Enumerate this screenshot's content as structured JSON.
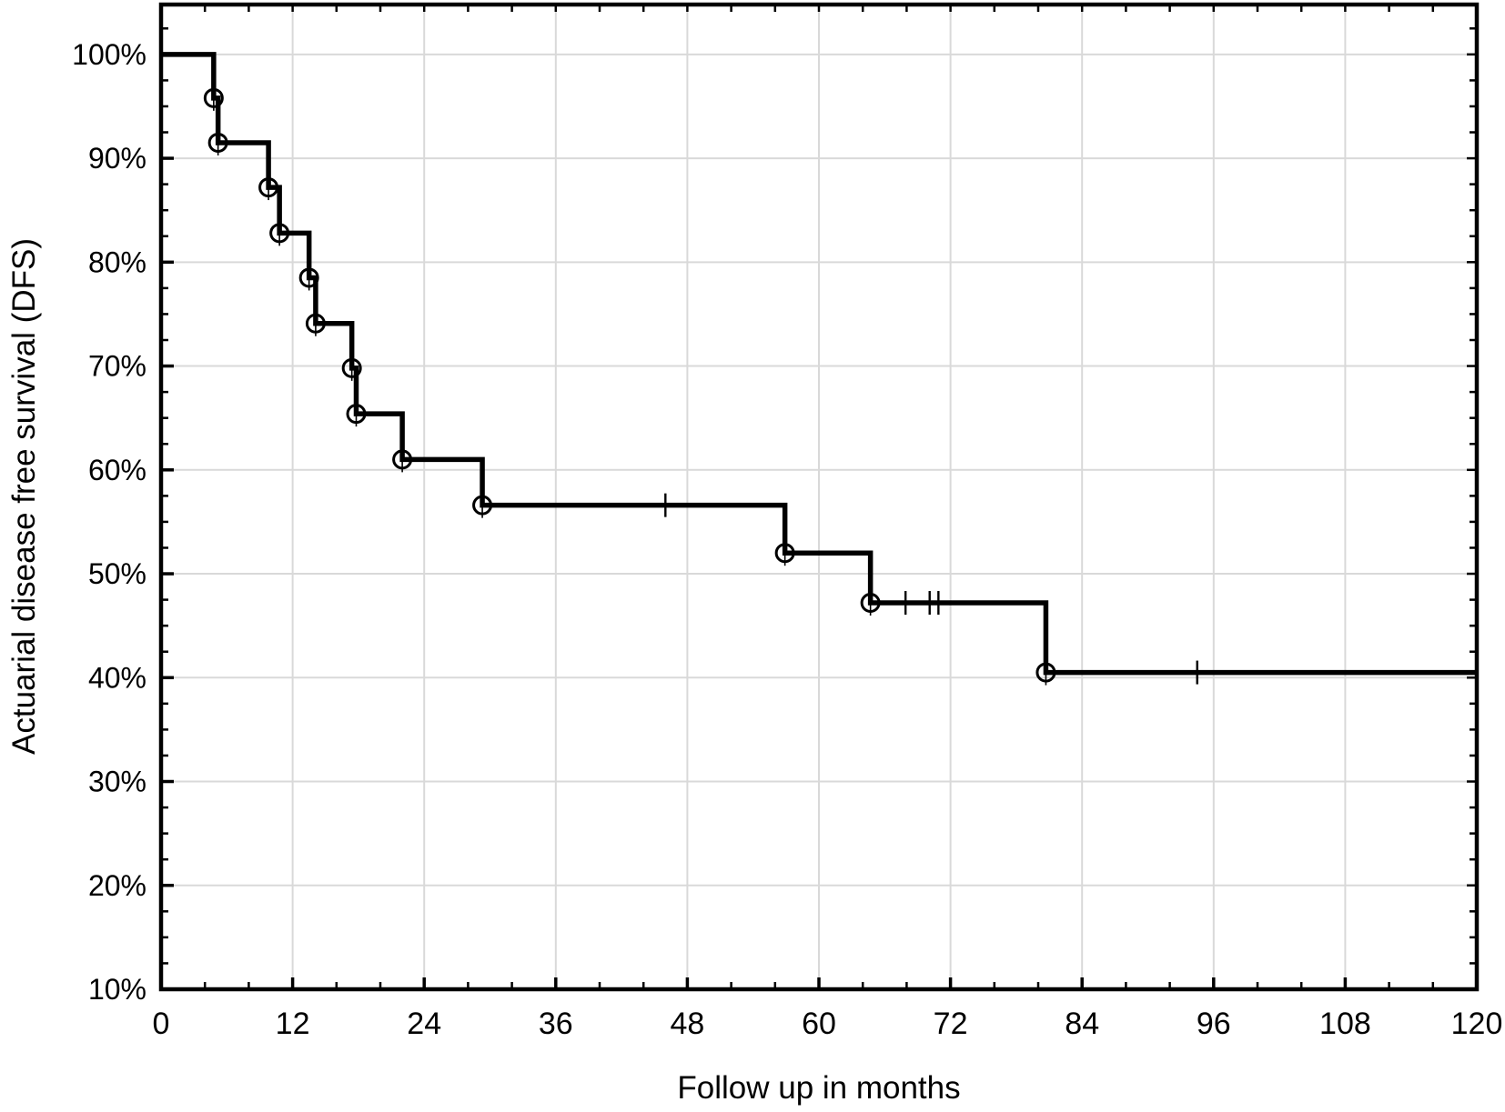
{
  "figure": {
    "x_axis_title": "Follow up in months",
    "y_axis_title": "Actuarial disease free survival (DFS)"
  },
  "chart_data": {
    "type": "line",
    "subtype": "kaplan-meier-step-curve",
    "title": "",
    "xlabel": "Follow up in months",
    "ylabel": "Actuarial disease free survival (DFS)",
    "xlim": [
      0,
      120
    ],
    "ylim_pct": [
      10,
      104.8
    ],
    "grid": true,
    "legend": "none",
    "x_major_ticks": [
      0,
      12,
      24,
      36,
      48,
      60,
      72,
      84,
      96,
      108,
      120
    ],
    "x_tick_labels": [
      "0",
      "12",
      "24",
      "36",
      "48",
      "60",
      "72",
      "84",
      "96",
      "108",
      "120"
    ],
    "x_minor_tick_step": 4,
    "y_tick_values": [
      100,
      90,
      80,
      70,
      60,
      50,
      40,
      30,
      20,
      10
    ],
    "y_tick_labels": [
      "100%",
      "90%",
      "80%",
      "70%",
      "60%",
      "50%",
      "40%",
      "30%",
      "20%",
      "10%"
    ],
    "y_minor_tick_step": 2.5,
    "series": [
      {
        "name": "Actuarial disease free survival (DFS)",
        "start_point": [
          0,
          100
        ],
        "event_steps": [
          [
            4.8,
            95.8
          ],
          [
            5.2,
            91.5
          ],
          [
            9.8,
            87.2
          ],
          [
            10.8,
            82.8
          ],
          [
            13.5,
            78.5
          ],
          [
            14.1,
            74.1
          ],
          [
            17.4,
            69.8
          ],
          [
            17.8,
            65.4
          ],
          [
            22.0,
            61.0
          ],
          [
            29.3,
            56.6
          ],
          [
            56.9,
            52.0
          ],
          [
            64.7,
            47.2
          ],
          [
            80.7,
            40.5
          ]
        ],
        "censored_points": [
          [
            46.0,
            56.6
          ],
          [
            67.9,
            47.2
          ],
          [
            70.1,
            47.2
          ],
          [
            70.9,
            47.2
          ],
          [
            94.5,
            40.5
          ]
        ],
        "curve_end_x": 120,
        "event_marker": "open-circle-with-vertical-hair",
        "censor_marker": "vertical-tick"
      }
    ],
    "colors": {
      "curve": "#000000",
      "grid": "#d9d9d9",
      "frame": "#000000",
      "text": "#000000",
      "background": "#ffffff"
    }
  }
}
